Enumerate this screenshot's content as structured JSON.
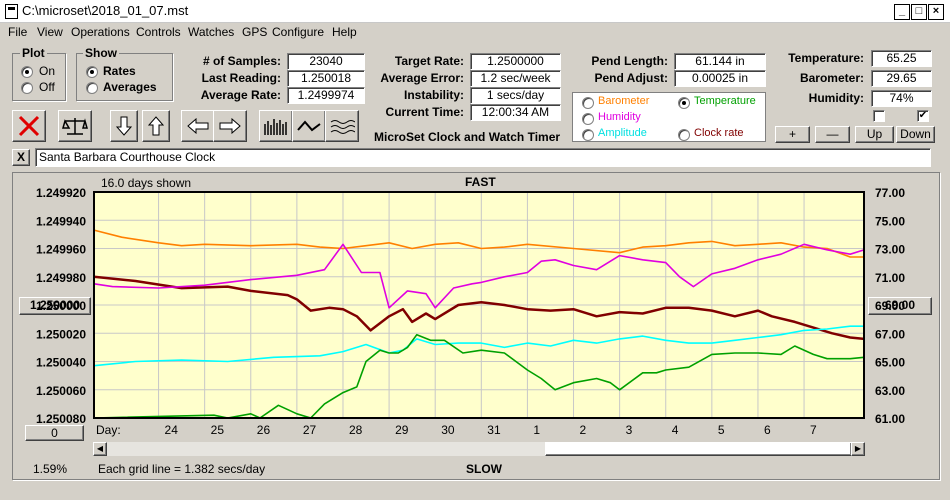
{
  "window": {
    "title": "C:\\microset\\2018_01_07.mst"
  },
  "menu": [
    "File",
    "View",
    "Operations",
    "Controls",
    "Watches",
    "GPS",
    "Configure",
    "Help"
  ],
  "plot_group": {
    "title": "Plot",
    "on": "On",
    "off": "Off"
  },
  "show_group": {
    "title": "Show",
    "rates": "Rates",
    "averages": "Averages"
  },
  "stats": {
    "samples_label": "# of Samples:",
    "samples": "23040",
    "last_label": "Last Reading:",
    "last": "1.250018",
    "avg_label": "Average Rate:",
    "avg": "1.2499974",
    "target_label": "Target Rate:",
    "target": "1.2500000",
    "avgerr_label": "Average Error:",
    "avgerr": "1.2 sec/week",
    "instab_label": "Instability:",
    "instab": "1 secs/day",
    "curtime_label": "Current Time:",
    "curtime": "12:00:34 AM",
    "pendlen_label": "Pend Length:",
    "pendlen": "61.144 in",
    "pendadj_label": "Pend Adjust:",
    "pendadj": "0.00025 in",
    "temp_label": "Temperature:",
    "temp": "65.25",
    "baro_label": "Barometer:",
    "baro": "29.65",
    "hum_label": "Humidity:",
    "hum": "74%"
  },
  "app_subtitle": "MicroSet Clock and Watch Timer",
  "sensor_options": {
    "barometer": "Barometer",
    "temperature": "Temperature",
    "humidity": "Humidity",
    "amplitude": "Amplitude",
    "clock_rate": "Clock rate"
  },
  "sensor_buttons": {
    "plus": "+",
    "minus": "—",
    "up": "Up",
    "down": "Down"
  },
  "description": "Santa Barbara Courthouse Clock",
  "description_close": "X",
  "chart_labels": {
    "days_shown": "16.0 days shown",
    "top": "FAST",
    "bottom": "SLOW",
    "grid_note": "Each grid line = 1.382 secs/day",
    "percent": "1.59%",
    "left_button": "1.250000",
    "right_button": "69.00",
    "zero_button": "0",
    "day_label": "Day:"
  },
  "colors": {
    "bg": "#ffffcc",
    "grid": "#c8c8c8",
    "rate": "#800000",
    "barometer": "#ff8000",
    "humidity": "#e000e0",
    "amplitude": "#00ffff",
    "temperature": "#00a000"
  },
  "chart_data": {
    "type": "line",
    "y_left_ticks": [
      "1.249920",
      "1.249940",
      "1.249960",
      "1.249980",
      "1.250000",
      "1.250020",
      "1.250040",
      "1.250060",
      "1.250080"
    ],
    "y_right_ticks": [
      "77.00",
      "75.00",
      "73.00",
      "71.00",
      "69.00",
      "67.00",
      "65.00",
      "63.00",
      "61.00"
    ],
    "ylim_left": [
      1.24992,
      1.25008
    ],
    "ylim_right": [
      61,
      77
    ],
    "x_ticks": [
      "24",
      "25",
      "26",
      "27",
      "28",
      "29",
      "30",
      "31",
      "1",
      "2",
      "3",
      "4",
      "5",
      "6",
      "7"
    ],
    "x_day_range": [
      22.6,
      39.3
    ],
    "series": [
      {
        "name": "Clock rate",
        "color": "#800000",
        "axis": "left",
        "x": [
          22.6,
          23.5,
          24.5,
          25.5,
          26.0,
          26.8,
          27.0,
          27.3,
          27.7,
          28.0,
          28.3,
          28.6,
          29.0,
          29.3,
          29.5,
          29.8,
          30.0,
          30.5,
          31.0,
          31.5,
          32.0,
          32.5,
          33.0,
          33.5,
          34.0,
          34.5,
          35.0,
          35.5,
          36.0,
          36.5,
          37.0,
          37.3,
          37.8,
          38.2,
          38.6,
          39.0,
          39.3
        ],
        "y": [
          1.24998,
          1.249983,
          1.249988,
          1.249987,
          1.24999,
          1.249993,
          1.249996,
          1.250004,
          1.250002,
          1.250003,
          1.250008,
          1.250018,
          1.250008,
          1.250003,
          1.250012,
          1.250006,
          1.25001,
          1.25,
          1.249998,
          1.25,
          1.250003,
          1.250004,
          1.250003,
          1.250008,
          1.250005,
          1.250006,
          1.250002,
          1.250002,
          1.250004,
          1.250008,
          1.250004,
          1.250008,
          1.250012,
          1.250016,
          1.25002,
          1.250023,
          1.250024
        ]
      },
      {
        "name": "Barometer",
        "color": "#ff8000",
        "axis": "right",
        "x": [
          22.6,
          23.2,
          24.0,
          24.5,
          25.0,
          26.0,
          27.0,
          27.5,
          28.0,
          28.5,
          29.0,
          29.5,
          30.0,
          30.5,
          31.0,
          31.5,
          32.0,
          33.0,
          34.0,
          34.5,
          35.0,
          35.5,
          36.0,
          36.5,
          37.0,
          37.5,
          38.0,
          38.5,
          39.0,
          39.3
        ],
        "y": [
          74.3,
          73.8,
          73.4,
          73.2,
          73.3,
          73.2,
          73.3,
          73.1,
          73.0,
          73.2,
          73.4,
          73.0,
          73.3,
          73.4,
          73.0,
          73.1,
          73.3,
          73.0,
          72.7,
          73.1,
          73.2,
          73.4,
          73.5,
          73.2,
          73.3,
          73.4,
          73.1,
          73.0,
          72.4,
          72.4
        ]
      },
      {
        "name": "Humidity",
        "color": "#e000e0",
        "axis": "right",
        "x": [
          22.6,
          23.0,
          24.0,
          25.0,
          26.0,
          27.0,
          27.6,
          28.0,
          28.4,
          28.8,
          29.0,
          29.4,
          29.8,
          30.0,
          30.4,
          30.8,
          31.0,
          31.5,
          32.0,
          32.3,
          32.6,
          33.0,
          33.5,
          34.0,
          34.5,
          35.0,
          35.3,
          35.6,
          36.0,
          36.5,
          37.0,
          37.5,
          38.0,
          38.5,
          39.0,
          39.3
        ],
        "y": [
          70.5,
          70.3,
          70.2,
          70.4,
          70.8,
          71.1,
          71.5,
          73.3,
          71.3,
          71.3,
          68.8,
          70.0,
          69.8,
          68.8,
          70.2,
          70.5,
          70.6,
          71.0,
          71.3,
          72.1,
          72.2,
          71.8,
          71.5,
          72.5,
          72.2,
          72.0,
          71.0,
          70.3,
          71.2,
          71.6,
          72.2,
          72.6,
          73.3,
          72.9,
          72.6,
          72.9
        ]
      },
      {
        "name": "Amplitude",
        "color": "#00ffff",
        "axis": "right",
        "x": [
          22.6,
          23.5,
          24.5,
          25.5,
          26.5,
          27.5,
          28.0,
          28.5,
          29.0,
          29.3,
          29.6,
          30.0,
          30.5,
          31.0,
          31.5,
          32.0,
          32.5,
          33.0,
          33.5,
          34.0,
          34.5,
          35.0,
          35.5,
          36.0,
          36.5,
          37.0,
          37.5,
          38.0,
          38.5,
          39.0,
          39.3
        ],
        "y": [
          64.7,
          65.0,
          65.1,
          65.0,
          65.3,
          65.4,
          65.7,
          66.2,
          65.6,
          65.8,
          66.6,
          66.2,
          66.3,
          66.3,
          66.0,
          66.3,
          66.1,
          66.5,
          66.3,
          66.6,
          66.8,
          66.5,
          66.3,
          66.3,
          66.5,
          66.7,
          66.9,
          67.2,
          67.3,
          67.5,
          67.5
        ]
      },
      {
        "name": "Temperature",
        "color": "#00a000",
        "axis": "right",
        "x": [
          22.6,
          25.2,
          25.5,
          26.0,
          26.2,
          26.6,
          27.0,
          27.3,
          27.6,
          28.0,
          28.3,
          28.5,
          28.8,
          29.0,
          29.2,
          29.4,
          29.6,
          29.9,
          30.2,
          30.6,
          31.0,
          31.5,
          32.0,
          32.3,
          32.6,
          33.0,
          33.5,
          33.8,
          34.0,
          34.5,
          34.8,
          35.0,
          35.5,
          36.0,
          36.5,
          37.0,
          37.5,
          37.8,
          38.2,
          38.5,
          39.0,
          39.3
        ],
        "y": [
          61.0,
          61.2,
          61.0,
          61.3,
          61.0,
          61.9,
          61.3,
          61.0,
          62.0,
          62.8,
          63.2,
          65.0,
          65.8,
          65.6,
          65.6,
          66.0,
          66.9,
          66.5,
          66.5,
          65.6,
          65.8,
          65.6,
          64.4,
          63.8,
          63.0,
          63.5,
          63.8,
          63.5,
          63.0,
          64.2,
          64.2,
          64.4,
          64.6,
          65.5,
          65.6,
          65.6,
          65.5,
          66.1,
          65.5,
          65.2,
          65.2,
          65.3
        ]
      }
    ]
  }
}
